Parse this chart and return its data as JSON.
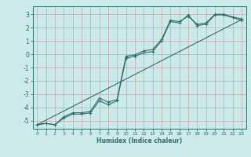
{
  "xlabel": "Humidex (Indice chaleur)",
  "background_color": "#cceaea",
  "grid_color": "#b0c8c8",
  "line_color": "#2d6e6a",
  "xlim": [
    -0.5,
    23.5
  ],
  "ylim": [
    -5.6,
    3.6
  ],
  "xticks": [
    0,
    1,
    2,
    3,
    4,
    5,
    6,
    7,
    8,
    9,
    10,
    11,
    12,
    13,
    14,
    15,
    16,
    17,
    18,
    19,
    20,
    21,
    22,
    23
  ],
  "yticks": [
    -5,
    -4,
    -3,
    -2,
    -1,
    0,
    1,
    2,
    3
  ],
  "line1_x": [
    0,
    1,
    2,
    3,
    4,
    5,
    6,
    7,
    8,
    9,
    10,
    11,
    12,
    13,
    14,
    15,
    16,
    17,
    18,
    19,
    20,
    21,
    22,
    23
  ],
  "line1_y": [
    -5.3,
    -5.2,
    -5.3,
    -4.7,
    -4.4,
    -4.4,
    -4.3,
    -3.3,
    -3.6,
    -3.4,
    -0.15,
    -0.05,
    0.25,
    0.35,
    1.1,
    2.55,
    2.45,
    2.85,
    2.25,
    2.35,
    3.0,
    3.0,
    2.8,
    2.65
  ],
  "line2_x": [
    0,
    1,
    2,
    3,
    4,
    5,
    6,
    7,
    8,
    9,
    10,
    11,
    12,
    13,
    14,
    15,
    16,
    17,
    18,
    19,
    20,
    21,
    22,
    23
  ],
  "line2_y": [
    -5.3,
    -5.2,
    -5.3,
    -4.8,
    -4.5,
    -4.5,
    -4.4,
    -3.5,
    -3.8,
    -3.5,
    -0.3,
    -0.15,
    0.1,
    0.2,
    1.0,
    2.45,
    2.35,
    2.95,
    2.15,
    2.25,
    2.95,
    2.95,
    2.75,
    2.55
  ],
  "line3_x": [
    0,
    23
  ],
  "line3_y": [
    -5.3,
    2.6
  ]
}
